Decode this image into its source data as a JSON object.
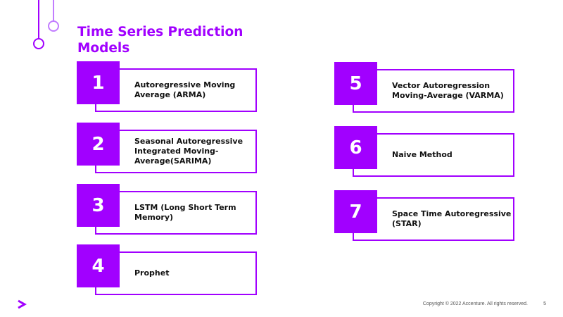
{
  "slide": {
    "title": "Time Series Prediction Models",
    "accent_color": "#a100ff",
    "items": [
      {
        "number": "1",
        "label": "Autoregressive Moving Average (ARMA)"
      },
      {
        "number": "2",
        "label": "Seasonal Autoregressive Integrated Moving-Average(SARIMA)"
      },
      {
        "number": "3",
        "label": "LSTM (Long Short Term Memory)"
      },
      {
        "number": "4",
        "label": "Prophet"
      },
      {
        "number": "5",
        "label": "Vector Autoregression Moving-Average (VARMA)"
      },
      {
        "number": "6",
        "label": "Naive Method"
      },
      {
        "number": "7",
        "label": "Space Time Autoregressive (STAR)"
      }
    ]
  },
  "footer": {
    "logo_icon": "accenture-chevron-icon",
    "copyright": "Copyright © 2022 Accenture. All rights reserved.",
    "page_number": "5"
  }
}
